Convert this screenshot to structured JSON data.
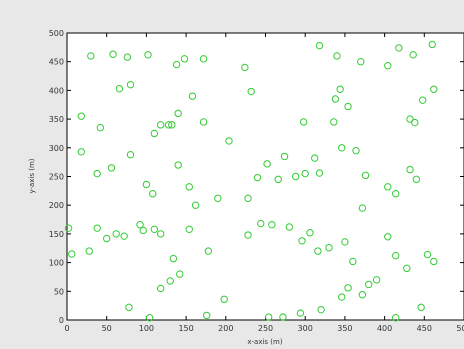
{
  "chart_data": {
    "type": "scatter",
    "title": "",
    "xlabel": "x-axis (m)",
    "ylabel": "y-axis (m)",
    "xlim": [
      0,
      500
    ],
    "ylim": [
      0,
      500
    ],
    "xticks": [
      0,
      50,
      100,
      150,
      200,
      250,
      300,
      350,
      400,
      450,
      500
    ],
    "yticks": [
      0,
      50,
      100,
      150,
      200,
      250,
      300,
      350,
      400,
      450,
      500
    ],
    "grid": false,
    "legend": "none",
    "marker": "circle",
    "marker_color": "#33cc33",
    "series": [
      {
        "points": [
          [
            2,
            160
          ],
          [
            18,
            355
          ],
          [
            30,
            460
          ],
          [
            58,
            463
          ],
          [
            76,
            458
          ],
          [
            102,
            462
          ],
          [
            138,
            445
          ],
          [
            148,
            455
          ],
          [
            172,
            455
          ],
          [
            224,
            440
          ],
          [
            318,
            478
          ],
          [
            340,
            460
          ],
          [
            370,
            450
          ],
          [
            418,
            474
          ],
          [
            436,
            462
          ],
          [
            460,
            480
          ],
          [
            42,
            335
          ],
          [
            66,
            403
          ],
          [
            80,
            410
          ],
          [
            110,
            325
          ],
          [
            118,
            340
          ],
          [
            128,
            340
          ],
          [
            132,
            340
          ],
          [
            140,
            360
          ],
          [
            172,
            345
          ],
          [
            158,
            390
          ],
          [
            232,
            398
          ],
          [
            204,
            312
          ],
          [
            252,
            272
          ],
          [
            274,
            285
          ],
          [
            298,
            345
          ],
          [
            300,
            255
          ],
          [
            336,
            345
          ],
          [
            338,
            385
          ],
          [
            344,
            402
          ],
          [
            354,
            372
          ],
          [
            404,
            443
          ],
          [
            432,
            350
          ],
          [
            438,
            344
          ],
          [
            448,
            383
          ],
          [
            462,
            402
          ],
          [
            18,
            293
          ],
          [
            38,
            255
          ],
          [
            56,
            265
          ],
          [
            80,
            288
          ],
          [
            100,
            236
          ],
          [
            108,
            220
          ],
          [
            140,
            270
          ],
          [
            154,
            232
          ],
          [
            162,
            200
          ],
          [
            190,
            212
          ],
          [
            228,
            212
          ],
          [
            240,
            248
          ],
          [
            266,
            245
          ],
          [
            288,
            250
          ],
          [
            312,
            282
          ],
          [
            318,
            256
          ],
          [
            346,
            300
          ],
          [
            364,
            295
          ],
          [
            376,
            252
          ],
          [
            404,
            232
          ],
          [
            414,
            220
          ],
          [
            432,
            262
          ],
          [
            440,
            245
          ],
          [
            6,
            115
          ],
          [
            28,
            120
          ],
          [
            38,
            160
          ],
          [
            50,
            142
          ],
          [
            62,
            150
          ],
          [
            72,
            146
          ],
          [
            92,
            166
          ],
          [
            96,
            156
          ],
          [
            110,
            158
          ],
          [
            118,
            150
          ],
          [
            134,
            107
          ],
          [
            154,
            158
          ],
          [
            178,
            120
          ],
          [
            198,
            36
          ],
          [
            228,
            148
          ],
          [
            244,
            168
          ],
          [
            258,
            166
          ],
          [
            280,
            162
          ],
          [
            296,
            138
          ],
          [
            306,
            152
          ],
          [
            316,
            120
          ],
          [
            330,
            126
          ],
          [
            350,
            136
          ],
          [
            360,
            102
          ],
          [
            372,
            195
          ],
          [
            390,
            70
          ],
          [
            404,
            145
          ],
          [
            414,
            112
          ],
          [
            428,
            90
          ],
          [
            454,
            114
          ],
          [
            462,
            102
          ],
          [
            78,
            22
          ],
          [
            104,
            4
          ],
          [
            118,
            55
          ],
          [
            130,
            68
          ],
          [
            142,
            80
          ],
          [
            176,
            8
          ],
          [
            254,
            5
          ],
          [
            272,
            5
          ],
          [
            294,
            12
          ],
          [
            320,
            18
          ],
          [
            346,
            40
          ],
          [
            354,
            56
          ],
          [
            372,
            44
          ],
          [
            380,
            62
          ],
          [
            414,
            4
          ],
          [
            446,
            22
          ]
        ]
      }
    ]
  }
}
